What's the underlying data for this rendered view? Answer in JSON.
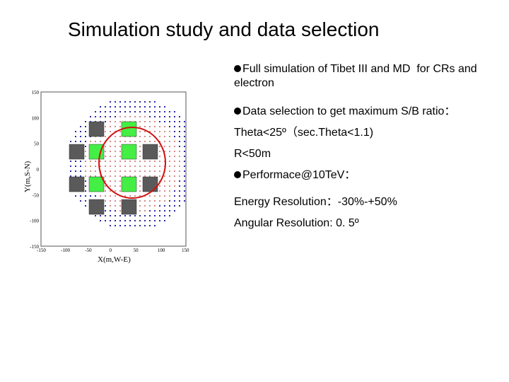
{
  "title": "Simulation study and data selection",
  "bullets": {
    "b1": "Full simulation of Tibet III and MD  for CRs and electron",
    "b2": "Data selection to get maximum S/B ratio：",
    "theta": "Theta<25º（sec.Theta<1.1)",
    "radius": "R<50m",
    "b3": "Performace@10TeV：",
    "energy": "Energy Resolution：-30%-+50%",
    "angular": "Angular Resolution: 0. 5º"
  },
  "plot": {
    "xlabel": "X(m,W-E)",
    "ylabel": "Y(m,S-N)",
    "xticks": [
      "-150",
      "-100",
      "-50",
      "0",
      "50",
      "100",
      "150"
    ],
    "yticks": [
      "150",
      "100",
      "50",
      "0",
      "-50",
      "-100",
      "-150"
    ],
    "colors": {
      "dots": "#2a2aa8",
      "grid": "#d88a8a",
      "green": "#44ee44",
      "dark": "#5a5a5a",
      "circle": "#d01010"
    }
  }
}
